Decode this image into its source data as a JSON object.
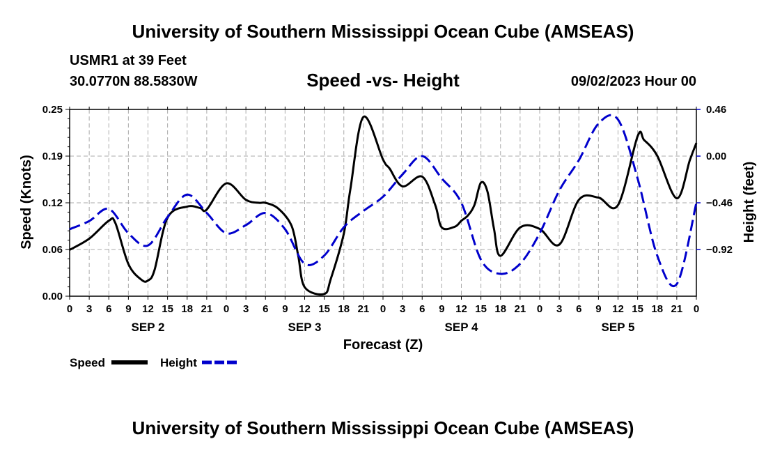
{
  "header": {
    "title": "University of Southern Mississippi Ocean Cube (AMSEAS)",
    "station": "USMR1 at 39 Feet",
    "coords": "30.0770N  88.5830W",
    "subtitle": "Speed -vs- Height",
    "datetime": "09/02/2023 Hour 00"
  },
  "footer": {
    "title": "University of Southern Mississippi Ocean Cube (AMSEAS)"
  },
  "colors": {
    "speed": "#000000",
    "height": "#0000cc",
    "grid": "#aaaaaa"
  },
  "chart_data": {
    "type": "line",
    "xlabel": "Forecast (Z)",
    "ylabel_left": "Speed (Knots)",
    "ylabel_right": "Height (feet)",
    "x_range_hours": [
      0,
      96
    ],
    "x_tick_step_hours": 3,
    "x_tick_labels": [
      "0",
      "3",
      "6",
      "9",
      "12",
      "15",
      "18",
      "21",
      "0",
      "3",
      "6",
      "9",
      "12",
      "15",
      "18",
      "21",
      "0",
      "3",
      "6",
      "9",
      "12",
      "15",
      "18",
      "21",
      "0",
      "3",
      "6",
      "9",
      "12",
      "15",
      "18",
      "21",
      "0"
    ],
    "day_labels": [
      {
        "label": "SEP 2",
        "hour": 12
      },
      {
        "label": "SEP 3",
        "hour": 36
      },
      {
        "label": "SEP 4",
        "hour": 60
      },
      {
        "label": "SEP 5",
        "hour": 84
      }
    ],
    "y_left": {
      "range": [
        0,
        0.25
      ],
      "ticks": [
        "0.00",
        "0.06",
        "0.12",
        "0.19",
        "0.25"
      ],
      "tick_values": [
        0,
        0.0625,
        0.125,
        0.1875,
        0.25
      ]
    },
    "y_right": {
      "range": [
        -1.38,
        0.46
      ],
      "ticks": [
        "0.46",
        "0.00",
        "−0.46",
        "−0.92"
      ],
      "tick_values": [
        0.46,
        0.0,
        -0.46,
        -0.92
      ]
    },
    "grid": true,
    "legend": {
      "position": "bottom-left",
      "speed_label": "Speed",
      "height_label": "Height"
    },
    "series": [
      {
        "name": "Speed",
        "axis": "left",
        "style": "solid",
        "x": [
          0,
          3,
          6,
          7,
          9,
          11,
          12,
          13,
          15,
          18,
          20,
          21,
          24,
          27,
          29,
          30,
          32,
          34,
          35,
          36,
          39,
          40,
          42,
          43,
          45,
          48,
          49,
          51,
          54,
          56,
          57,
          59,
          60,
          61,
          62,
          63,
          64,
          65,
          66,
          69,
          72,
          75,
          78,
          81,
          84,
          87,
          88,
          90,
          93,
          95,
          96
        ],
        "y": [
          0.062,
          0.077,
          0.101,
          0.098,
          0.043,
          0.022,
          0.021,
          0.035,
          0.105,
          0.12,
          0.118,
          0.116,
          0.151,
          0.129,
          0.125,
          0.125,
          0.117,
          0.094,
          0.055,
          0.012,
          0.003,
          0.023,
          0.084,
          0.143,
          0.24,
          0.183,
          0.171,
          0.147,
          0.16,
          0.122,
          0.092,
          0.093,
          0.101,
          0.108,
          0.122,
          0.152,
          0.14,
          0.09,
          0.054,
          0.092,
          0.09,
          0.069,
          0.129,
          0.132,
          0.122,
          0.214,
          0.209,
          0.188,
          0.131,
          0.182,
          0.205
        ]
      },
      {
        "name": "Height",
        "axis": "right",
        "style": "dashed",
        "x": [
          0,
          3,
          6,
          9,
          12,
          15,
          18,
          21,
          24,
          27,
          30,
          33,
          36,
          39,
          42,
          45,
          48,
          51,
          54,
          57,
          60,
          63,
          66,
          69,
          72,
          75,
          78,
          81,
          84,
          87,
          90,
          93,
          96
        ],
        "y": [
          -0.72,
          -0.64,
          -0.52,
          -0.76,
          -0.88,
          -0.6,
          -0.38,
          -0.56,
          -0.76,
          -0.68,
          -0.56,
          -0.72,
          -1.06,
          -0.98,
          -0.7,
          -0.54,
          -0.4,
          -0.18,
          0.0,
          -0.22,
          -0.46,
          -1.02,
          -1.16,
          -1.06,
          -0.76,
          -0.34,
          -0.04,
          0.32,
          0.36,
          -0.22,
          -0.98,
          -1.26,
          -0.46
        ]
      }
    ]
  }
}
